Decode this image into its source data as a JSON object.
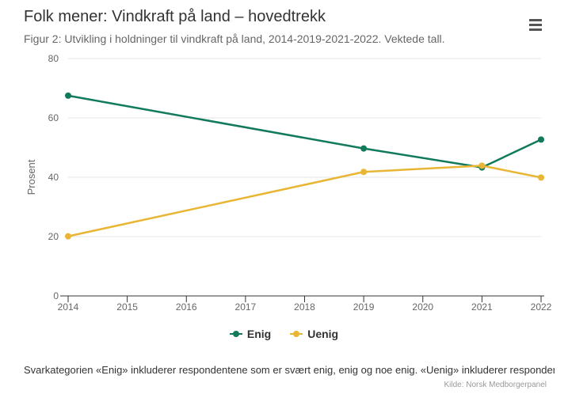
{
  "title": "Folk mener: Vindkraft på land – hovedtrekk",
  "subtitle": "Figur 2: Utvikling i holdninger til vindkraft på land, 2014-2019-2021-2022. Vektede tall.",
  "note": "Svarkategorien «Enig» inkluderer respondentene som er svært enig, enig og noe enig. «Uenig» inkluderer respondentene som er svært uenig, uenig og noe uenig.",
  "credits": "Kilde: Norsk Medborgerpanel",
  "menu_icon": "hamburger-menu-icon",
  "colors": {
    "enig": "#127a5c",
    "uenig": "#e8b634",
    "grid": "#e6e6e6",
    "axis": "#333333"
  },
  "chart_data": {
    "type": "line",
    "title": "Folk mener: Vindkraft på land – hovedtrekk",
    "xlabel": "",
    "ylabel": "Prosent",
    "categories": [
      "2014",
      "2015",
      "2016",
      "2017",
      "2018",
      "2019",
      "2020",
      "2021",
      "2022"
    ],
    "ylim": [
      0,
      80
    ],
    "yticks": [
      "0",
      "20",
      "40",
      "60",
      "80"
    ],
    "grid": true,
    "legend_position": "bottom-center",
    "series": [
      {
        "name": "Enig",
        "values": [
          67.5,
          null,
          null,
          null,
          null,
          49.7,
          null,
          43.3,
          52.7
        ]
      },
      {
        "name": "Uenig",
        "values": [
          20.1,
          null,
          null,
          null,
          null,
          41.8,
          null,
          43.9,
          39.9
        ]
      }
    ]
  }
}
